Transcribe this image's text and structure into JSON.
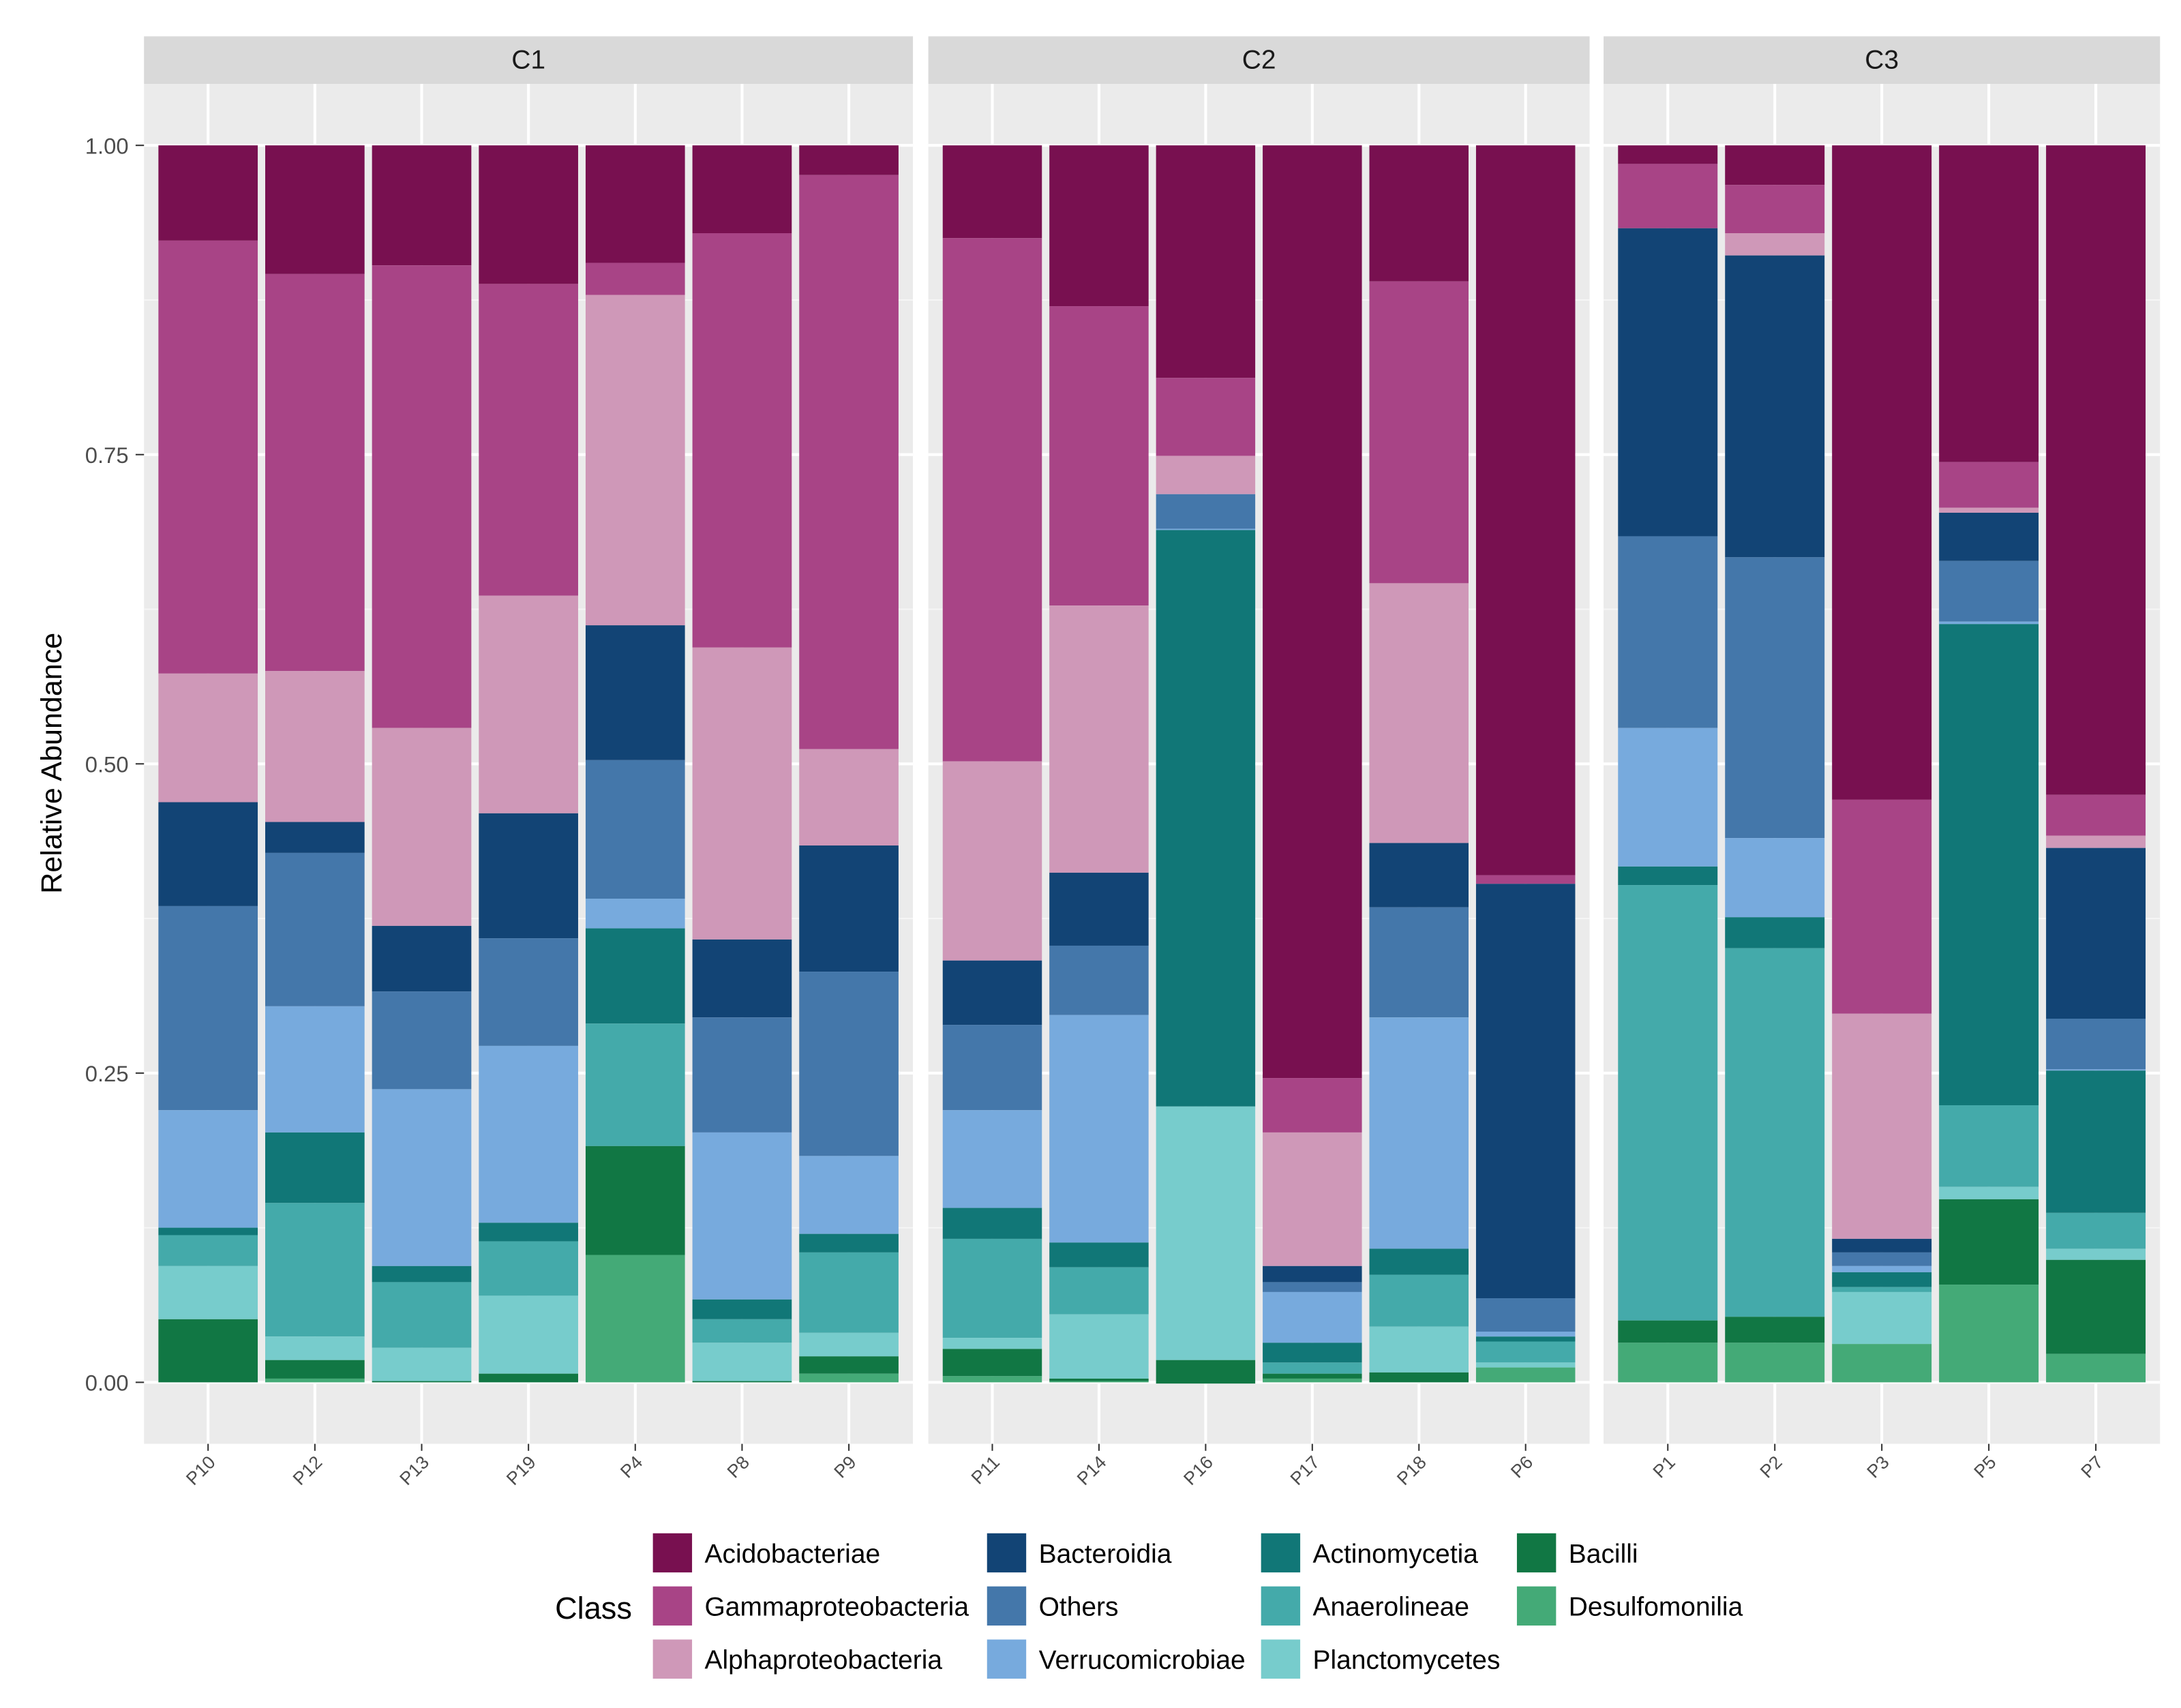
{
  "chart_data": {
    "type": "bar",
    "stacked": true,
    "ylabel": "Relative Abundance",
    "xlabel": "",
    "ylim": [
      0,
      1
    ],
    "yticks": [
      "0.00",
      "0.25",
      "0.50",
      "0.75",
      "1.00"
    ],
    "ytick_values": [
      0,
      0.25,
      0.5,
      0.75,
      1.0
    ],
    "legend": {
      "title": "Class",
      "placement": "bottom",
      "entries": [
        "Acidobacteriae",
        "Gammaproteobacteria",
        "Alphaproteobacteria",
        "Bacteroidia",
        "Others",
        "Verrucomicrobiae",
        "Actinomycetia",
        "Anaerolineae",
        "Planctomycetes",
        "Bacilli",
        "Desulfomonilia"
      ]
    },
    "colors": {
      "Acidobacteriae": "#781050",
      "Gammaproteobacteria": "#a84486",
      "Alphaproteobacteria": "#cf98b8",
      "Bacteroidia": "#124475",
      "Others": "#4477aa",
      "Verrucomicrobiae": "#77aadd",
      "Actinomycetia": "#117777",
      "Anaerolineae": "#44aaaa",
      "Planctomycetes": "#77cccc",
      "Bacilli": "#117744",
      "Desulfomonilia": "#44aa77"
    },
    "facets": [
      {
        "name": "C1",
        "categories": [
          "P10",
          "P12",
          "P13",
          "P19",
          "P4",
          "P8",
          "P9"
        ],
        "series": [
          {
            "name": "Acidobacteriae",
            "values": [
              0.077,
              0.104,
              0.097,
              0.112,
              0.095,
              0.071,
              0.024
            ]
          },
          {
            "name": "Gammaproteobacteria",
            "values": [
              0.35,
              0.321,
              0.374,
              0.252,
              0.026,
              0.335,
              0.464
            ]
          },
          {
            "name": "Alphaproteobacteria",
            "values": [
              0.104,
              0.122,
              0.16,
              0.176,
              0.267,
              0.236,
              0.078
            ]
          },
          {
            "name": "Bacteroidia",
            "values": [
              0.084,
              0.025,
              0.053,
              0.101,
              0.109,
              0.063,
              0.102
            ]
          },
          {
            "name": "Others",
            "values": [
              0.165,
              0.124,
              0.079,
              0.087,
              0.112,
              0.093,
              0.149
            ]
          },
          {
            "name": "Verrucomicrobiae",
            "values": [
              0.095,
              0.102,
              0.143,
              0.143,
              0.024,
              0.135,
              0.063
            ]
          },
          {
            "name": "Actinomycetia",
            "values": [
              0.006,
              0.057,
              0.013,
              0.015,
              0.077,
              0.016,
              0.015
            ]
          },
          {
            "name": "Anaerolineae",
            "values": [
              0.025,
              0.108,
              0.053,
              0.044,
              0.099,
              0.019,
              0.065
            ]
          },
          {
            "name": "Planctomycetes",
            "values": [
              0.043,
              0.019,
              0.027,
              0.063,
              0.0,
              0.031,
              0.019
            ]
          },
          {
            "name": "Bacilli",
            "values": [
              0.051,
              0.015,
              0.001,
              0.007,
              0.088,
              0.001,
              0.014
            ]
          },
          {
            "name": "Desulfomonilia",
            "values": [
              0.0,
              0.003,
              0.0,
              0.0,
              0.103,
              0.0,
              0.007
            ]
          }
        ]
      },
      {
        "name": "C2",
        "categories": [
          "P11",
          "P14",
          "P16",
          "P17",
          "P18",
          "P6"
        ],
        "series": [
          {
            "name": "Acidobacteriae",
            "values": [
              0.075,
              0.13,
              0.188,
              0.754,
              0.11,
              0.59
            ]
          },
          {
            "name": "Gammaproteobacteria",
            "values": [
              0.423,
              0.242,
              0.063,
              0.044,
              0.244,
              0.007
            ]
          },
          {
            "name": "Alphaproteobacteria",
            "values": [
              0.161,
              0.216,
              0.031,
              0.108,
              0.21,
              0.0
            ]
          },
          {
            "name": "Bacteroidia",
            "values": [
              0.052,
              0.059,
              0.0,
              0.013,
              0.052,
              0.335
            ]
          },
          {
            "name": "Others",
            "values": [
              0.069,
              0.056,
              0.028,
              0.008,
              0.089,
              0.027
            ]
          },
          {
            "name": "Verrucomicrobiae",
            "values": [
              0.079,
              0.184,
              0.001,
              0.041,
              0.187,
              0.004
            ]
          },
          {
            "name": "Actinomycetia",
            "values": [
              0.025,
              0.02,
              0.466,
              0.016,
              0.021,
              0.004
            ]
          },
          {
            "name": "Anaerolineae",
            "values": [
              0.08,
              0.038,
              0.0,
              0.009,
              0.042,
              0.017
            ]
          },
          {
            "name": "Planctomycetes",
            "values": [
              0.009,
              0.052,
              0.205,
              0.0,
              0.037,
              0.004
            ]
          },
          {
            "name": "Bacilli",
            "values": [
              0.022,
              0.002,
              0.019,
              0.004,
              0.008,
              0.0
            ]
          },
          {
            "name": "Desulfomonilia",
            "values": [
              0.005,
              0.001,
              0.0,
              0.003,
              0.0,
              0.012
            ]
          }
        ]
      },
      {
        "name": "C3",
        "categories": [
          "P1",
          "P2",
          "P3",
          "P5",
          "P7"
        ],
        "series": [
          {
            "name": "Acidobacteriae",
            "values": [
              0.015,
              0.032,
              0.529,
              0.256,
              0.525
            ]
          },
          {
            "name": "Gammaproteobacteria",
            "values": [
              0.052,
              0.039,
              0.173,
              0.037,
              0.033
            ]
          },
          {
            "name": "Alphaproteobacteria",
            "values": [
              0.0,
              0.018,
              0.182,
              0.004,
              0.01
            ]
          },
          {
            "name": "Bacteroidia",
            "values": [
              0.249,
              0.244,
              0.011,
              0.039,
              0.138
            ]
          },
          {
            "name": "Others",
            "values": [
              0.155,
              0.227,
              0.011,
              0.049,
              0.041
            ]
          },
          {
            "name": "Verrucomicrobiae",
            "values": [
              0.112,
              0.064,
              0.005,
              0.002,
              0.001
            ]
          },
          {
            "name": "Actinomycetia",
            "values": [
              0.015,
              0.025,
              0.012,
              0.389,
              0.115
            ]
          },
          {
            "name": "Anaerolineae",
            "values": [
              0.352,
              0.298,
              0.004,
              0.066,
              0.029
            ]
          },
          {
            "name": "Planctomycetes",
            "values": [
              0.0,
              0.0,
              0.042,
              0.01,
              0.009
            ]
          },
          {
            "name": "Bacilli",
            "values": [
              0.018,
              0.021,
              0.0,
              0.069,
              0.076
            ]
          },
          {
            "name": "Desulfomonilia",
            "values": [
              0.032,
              0.032,
              0.031,
              0.079,
              0.023
            ]
          }
        ]
      }
    ]
  }
}
